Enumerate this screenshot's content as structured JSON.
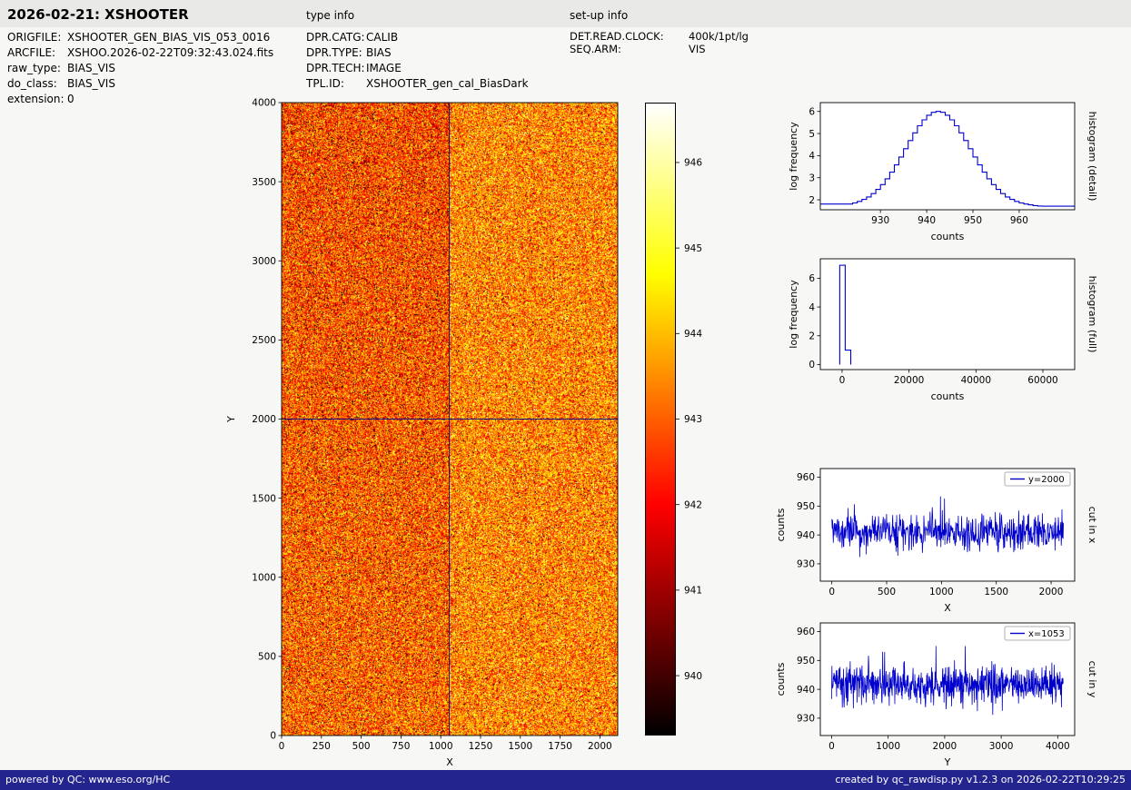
{
  "header": {
    "title": "2026-02-21: XSHOOTER",
    "type_info_label": "type info",
    "setup_info_label": "set-up info"
  },
  "file_info": {
    "rows": [
      {
        "label": "ORIGFILE:",
        "value": "XSHOOTER_GEN_BIAS_VIS_053_0016"
      },
      {
        "label": "ARCFILE:",
        "value": "XSHOO.2026-02-22T09:32:43.024.fits"
      },
      {
        "label": "raw_type:",
        "value": "BIAS_VIS"
      },
      {
        "label": "do_class:",
        "value": "BIAS_VIS"
      },
      {
        "label": "extension:",
        "value": "0"
      }
    ]
  },
  "type_info": {
    "rows": [
      {
        "label": "DPR.CATG:",
        "value": "CALIB"
      },
      {
        "label": "DPR.TYPE:",
        "value": "BIAS"
      },
      {
        "label": "DPR.TECH:",
        "value": "IMAGE"
      },
      {
        "label": "TPL.ID:",
        "value": "XSHOOTER_gen_cal_BiasDark"
      }
    ]
  },
  "setup_info": {
    "rows": [
      {
        "label": "DET.READ.CLOCK:",
        "value": "400k/1pt/lg"
      },
      {
        "label": "SEQ.ARM:",
        "value": "VIS"
      }
    ]
  },
  "footer": {
    "left": "powered by QC: www.eso.org/HC",
    "right": "created by qc_rawdisp.py v1.2.3 on 2026-02-22T10:29:25"
  },
  "colors": {
    "plot_line": "#0000cc",
    "crosshair": "#000080",
    "footer_bg": "#24248f",
    "frame": "#000000"
  },
  "chart_data": [
    {
      "id": "bias_image",
      "type": "heatmap",
      "xlabel": "X",
      "ylabel": "Y",
      "x_range": [
        0,
        2112
      ],
      "y_range": [
        0,
        4000
      ],
      "x_ticks": [
        0,
        250,
        500,
        750,
        1000,
        1250,
        1500,
        1750,
        2000
      ],
      "y_ticks": [
        0,
        500,
        1000,
        1500,
        2000,
        2500,
        3000,
        3500,
        4000
      ],
      "crosshair_x": 1053,
      "crosshair_y": 2000,
      "colormap": "hot",
      "noise": {
        "mean_counts": 941,
        "display_min": 939.3,
        "display_max": 946.7
      }
    },
    {
      "id": "colorbar",
      "type": "colorbar",
      "colormap": "hot",
      "ticks": [
        946,
        945,
        944,
        943,
        942,
        941,
        940
      ],
      "value_top": 946.7,
      "value_bottom": 939.3
    },
    {
      "id": "hist_detail",
      "type": "step-histogram",
      "xlabel": "counts",
      "ylabel": "log frequency",
      "right_label": "histogram (detail)",
      "x_range": [
        917,
        972
      ],
      "y_range": [
        1.55,
        6.4
      ],
      "x_ticks": [
        930,
        940,
        950,
        960
      ],
      "y_ticks": [
        2,
        3,
        4,
        5,
        6
      ],
      "bins_start": 923,
      "bin_width": 1,
      "log_freq": [
        1.81,
        1.86,
        1.93,
        2.02,
        2.13,
        2.28,
        2.47,
        2.69,
        2.95,
        3.25,
        3.58,
        3.94,
        4.31,
        4.68,
        5.03,
        5.35,
        5.62,
        5.83,
        5.96,
        6.0,
        5.96,
        5.83,
        5.62,
        5.35,
        5.03,
        4.68,
        4.31,
        3.94,
        3.58,
        3.25,
        2.95,
        2.69,
        2.47,
        2.28,
        2.13,
        2.02,
        1.93,
        1.86,
        1.81,
        1.77,
        1.74,
        1.72,
        1.71
      ]
    },
    {
      "id": "hist_full",
      "type": "step-histogram",
      "xlabel": "counts",
      "ylabel": "log frequency",
      "right_label": "histogram (full)",
      "x_range": [
        -6500,
        69500
      ],
      "y_range": [
        -0.35,
        7.35
      ],
      "x_ticks": [
        0,
        20000,
        40000,
        60000
      ],
      "y_ticks": [
        0,
        2,
        4,
        6
      ],
      "baseline": true,
      "bins_start": -700,
      "bin_width": 1650,
      "log_freq": [
        6.9,
        1.0
      ]
    },
    {
      "id": "cut_x",
      "type": "line",
      "xlabel": "X",
      "ylabel": "counts",
      "right_label": "cut in x",
      "legend": "y=2000",
      "x_range": [
        -105,
        2215
      ],
      "y_range": [
        924,
        963
      ],
      "x_ticks": [
        0,
        500,
        1000,
        1500,
        2000
      ],
      "y_ticks": [
        930,
        940,
        950,
        960
      ],
      "series": {
        "name": "y=2000",
        "x_max": 2112,
        "mean": 941,
        "std": 3.1,
        "n": 640,
        "seed": 7
      }
    },
    {
      "id": "cut_y",
      "type": "line",
      "xlabel": "Y",
      "ylabel": "counts",
      "right_label": "cut in y",
      "legend": "x=1053",
      "x_range": [
        -200,
        4300
      ],
      "y_range": [
        924,
        963
      ],
      "x_ticks": [
        0,
        1000,
        2000,
        3000,
        4000
      ],
      "y_ticks": [
        930,
        940,
        950,
        960
      ],
      "series": {
        "name": "x=1053",
        "x_max": 4096,
        "mean": 942,
        "std": 3.3,
        "n": 800,
        "seed": 13
      }
    }
  ]
}
